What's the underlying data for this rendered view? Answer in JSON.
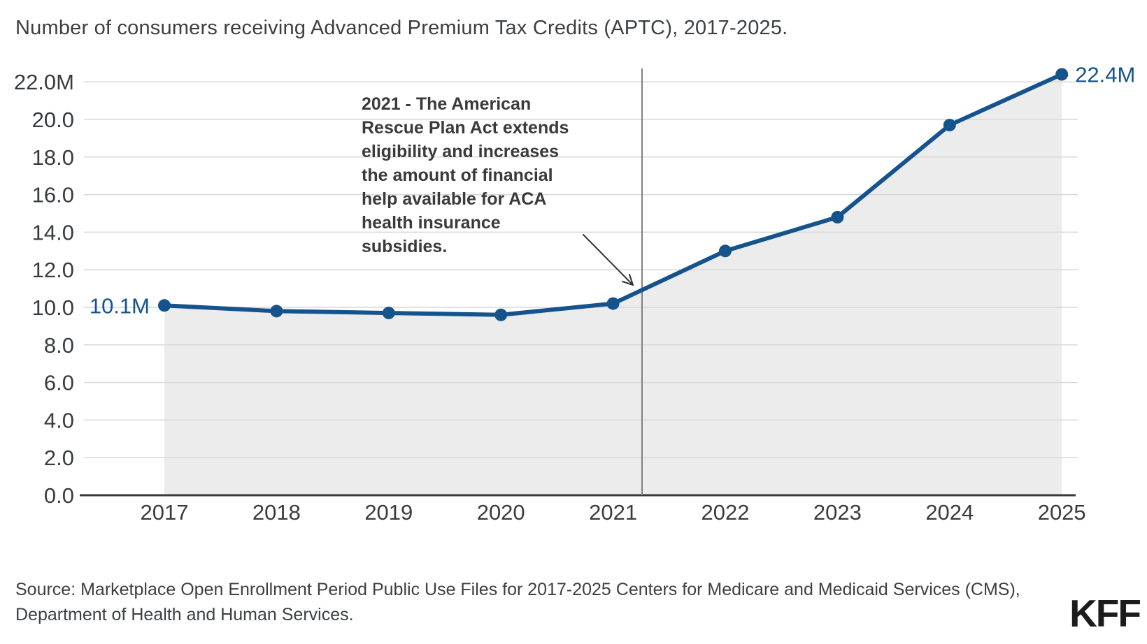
{
  "title": "Number of consumers receiving Advanced Premium Tax Credits (APTC), 2017-2025.",
  "source": {
    "line1": "Source: Marketplace Open Enrollment Period Public Use Files for 2017-2025 Centers for Medicare and Medicaid Services (CMS),",
    "line2": "Department of Health and Human Services."
  },
  "logo": {
    "text": "KFF"
  },
  "chart_data": {
    "type": "line",
    "title": "Number of consumers receiving Advanced Premium Tax Credits (APTC), 2017-2025.",
    "categories": [
      "2017",
      "2018",
      "2019",
      "2020",
      "2021",
      "2022",
      "2023",
      "2024",
      "2025"
    ],
    "values": [
      10.1,
      9.8,
      9.7,
      9.6,
      10.2,
      13.0,
      14.8,
      19.7,
      22.4
    ],
    "unit": "millions of consumers",
    "first_point_label": "10.1M",
    "last_point_label": "22.4M",
    "y_ticks": [
      "0.0",
      "2.0",
      "4.0",
      "6.0",
      "8.0",
      "10.0",
      "12.0",
      "14.0",
      "16.0",
      "18.0",
      "20.0",
      "22.0M"
    ],
    "y_tick_values": [
      0,
      2,
      4,
      6,
      8,
      10,
      12,
      14,
      16,
      18,
      20,
      22
    ],
    "ylim": [
      0,
      22.4
    ],
    "grid": true,
    "legend": "none",
    "annotation": {
      "text": "2021 - The American Rescue Plan Act extends eligibility and increases the amount of financial help available for ACA health insurance subsidies.",
      "lines": [
        "2021 - The American",
        "Rescue Plan Act extends",
        "eligibility and increases",
        "the amount of financial",
        "help available for ACA",
        "health insurance",
        "subsidies."
      ],
      "ref_line_year": "2021"
    },
    "colors": {
      "line": "#14538C",
      "area": "#ECECEC",
      "grid": "#D8D8D8",
      "axis": "#3A3A3A",
      "ref_line": "#808080",
      "text": "#383C40",
      "value_label": "#14538C",
      "annotation_text": "#3A3A3A",
      "arrow": "#333333"
    }
  }
}
